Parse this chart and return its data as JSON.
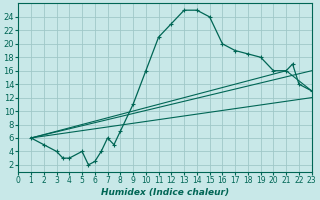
{
  "xlabel": "Humidex (Indice chaleur)",
  "xlim": [
    0,
    23
  ],
  "ylim": [
    1,
    26
  ],
  "yticks": [
    2,
    4,
    6,
    8,
    10,
    12,
    14,
    16,
    18,
    20,
    22,
    24
  ],
  "xticks": [
    0,
    1,
    2,
    3,
    4,
    5,
    6,
    7,
    8,
    9,
    10,
    11,
    12,
    13,
    14,
    15,
    16,
    17,
    18,
    19,
    20,
    21,
    22,
    23
  ],
  "bg_color": "#c8e8e8",
  "grid_color": "#a0c8c8",
  "line_color": "#006655",
  "main_x": [
    1,
    2,
    3,
    3.5,
    4,
    5,
    5.5,
    6,
    6.5,
    7,
    7.5,
    8,
    9,
    10,
    11,
    12,
    13,
    14,
    15,
    16,
    17,
    18,
    19,
    20,
    21,
    21.5,
    22,
    23
  ],
  "main_y": [
    6,
    5,
    4,
    3,
    3,
    4,
    2,
    2.5,
    4,
    6,
    5,
    7,
    11,
    16,
    21,
    23,
    25,
    25,
    24,
    20,
    19,
    18.5,
    18,
    16,
    16,
    17,
    14,
    13
  ],
  "line1_x": [
    1,
    21,
    23
  ],
  "line1_y": [
    6,
    16,
    13
  ],
  "line2_x": [
    1,
    23
  ],
  "line2_y": [
    6,
    16
  ],
  "line3_x": [
    1,
    23
  ],
  "line3_y": [
    6,
    12
  ]
}
